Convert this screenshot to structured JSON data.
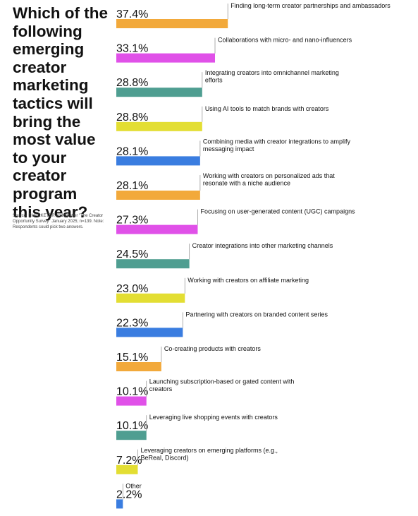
{
  "header": {
    "title": "Which of the following emerging creator marketing tactics will bring the most value to your creator program this year?"
  },
  "footer": {
    "source": "Source: EMARKETER and Spotter \"The Creator Opportunity Survey\" January 2025; n=139. Note: Respondents could pick two answers."
  },
  "colors": {
    "orange": "#f2a93b",
    "magenta": "#e051e8",
    "teal": "#4f9e91",
    "yellow": "#e3de33",
    "blue": "#3a7de0"
  },
  "chart_data": {
    "type": "bar",
    "orientation": "horizontal",
    "unit": "%",
    "xlim": [
      0,
      100
    ],
    "categories": [
      "Finding long-term creator partnerships and ambassadors",
      "Collaborations with micro- and nano-influencers",
      "Integrating creators into omnichannel marketing efforts",
      "Using AI tools to match brands with creators",
      "Combining media with creator integrations to amplify messaging impact",
      "Working with creators on personalized ads that resonate with a niche audience",
      "Focusing on user-generated content (UGC) campaigns",
      "Creator integrations into other marketing channels",
      "Working with creators on affiliate marketing",
      "Partnering with creators on branded content series",
      "Co-creating products with creators",
      "Launching subscription-based or gated content with creators",
      "Leveraging live shopping events with creators",
      "Leveraging creators on emerging platforms (e.g., BeReal, Discord)",
      "Other"
    ],
    "values": [
      37.4,
      33.1,
      28.8,
      28.8,
      28.1,
      28.1,
      27.3,
      24.5,
      23.0,
      22.3,
      15.1,
      10.1,
      10.1,
      7.2,
      2.2
    ],
    "value_labels": [
      "37.4%",
      "33.1%",
      "28.8%",
      "28.8%",
      "28.1%",
      "28.1%",
      "27.3%",
      "24.5%",
      "23.0%",
      "22.3%",
      "15.1%",
      "10.1%",
      "10.1%",
      "7.2%",
      "2.2%"
    ],
    "bar_colors": [
      "orange",
      "magenta",
      "teal",
      "yellow",
      "blue",
      "orange",
      "magenta",
      "teal",
      "yellow",
      "blue",
      "orange",
      "magenta",
      "teal",
      "yellow",
      "blue"
    ],
    "grid": false,
    "legend": "none"
  }
}
